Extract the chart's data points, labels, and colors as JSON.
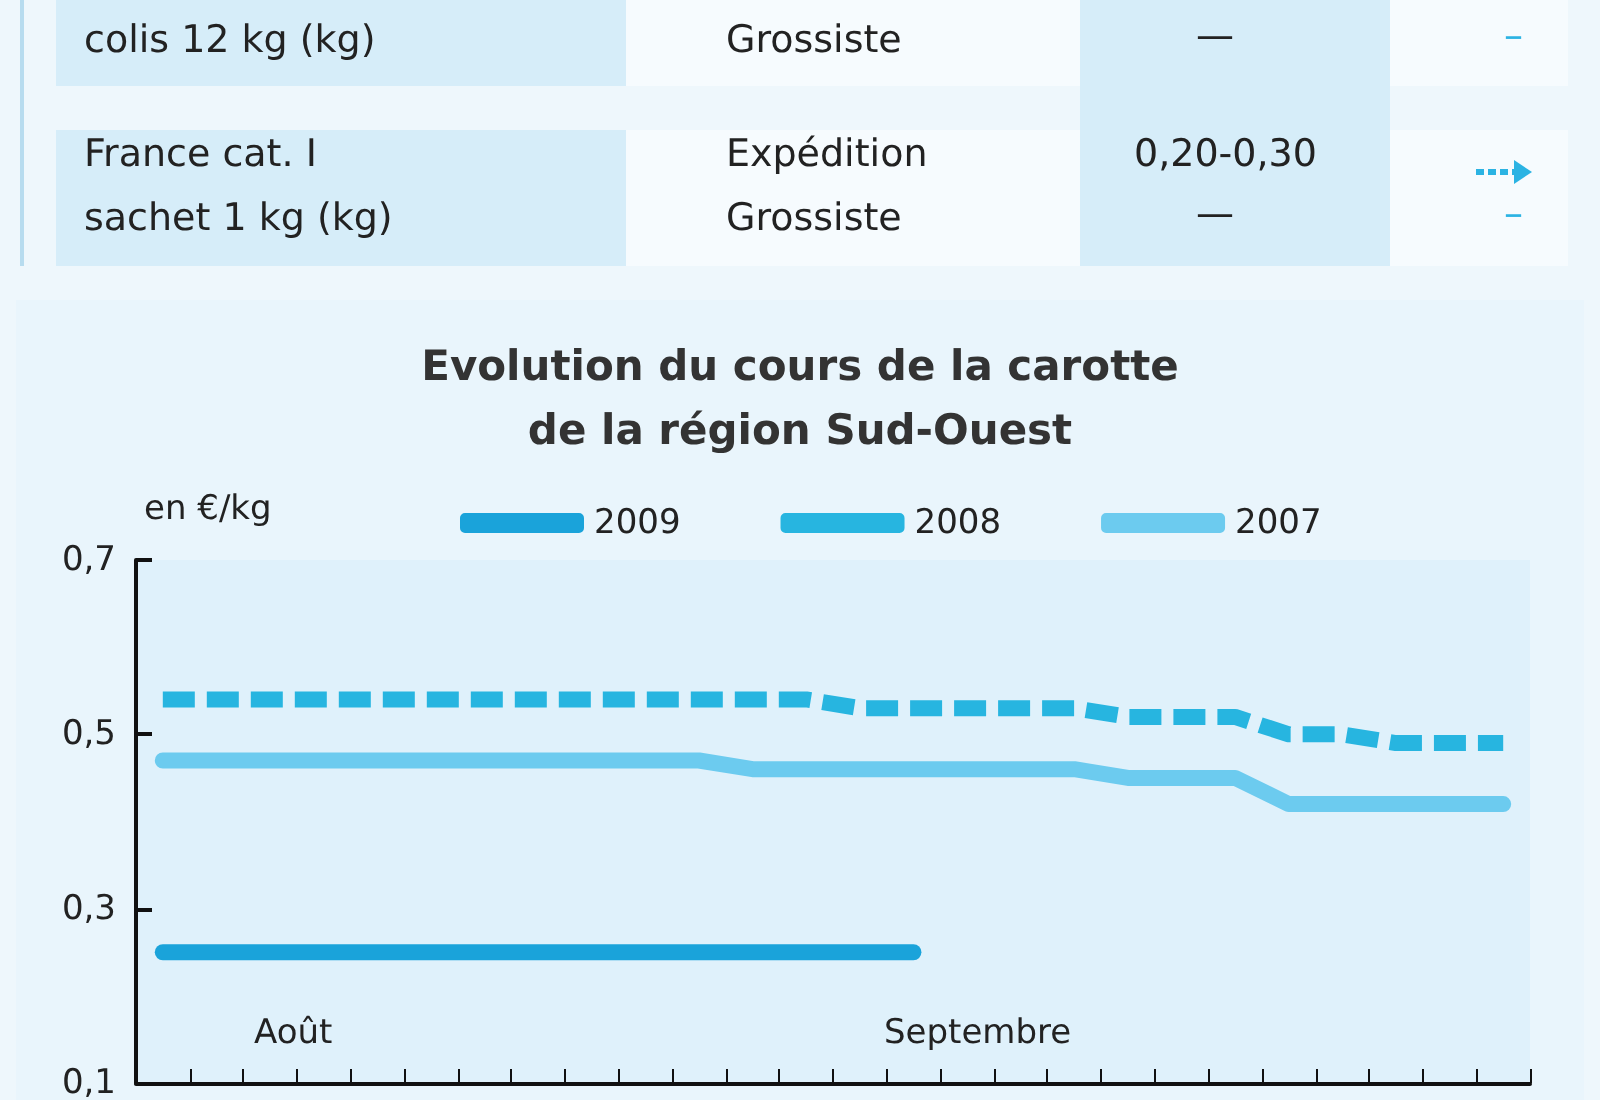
{
  "chart_data": {
    "type": "line",
    "title": "Evolution du cours de la carotte\nde la région Sud-Ouest",
    "ylabel": "en €/kg",
    "annotations": [
      "colis 12 kg (kg)",
      "Grossiste",
      "—",
      "–",
      "France cat. I",
      "sachet 1 kg (kg)",
      "Expédition",
      "Grossiste",
      "0,20-0,30",
      "—",
      "–",
      "Août",
      "Septembre"
    ],
    "categories": [
      null,
      null,
      null,
      null,
      null,
      null,
      null,
      null,
      null,
      null,
      null,
      null,
      null,
      null,
      null,
      null,
      null,
      null,
      null,
      null,
      null,
      null,
      null,
      null,
      null,
      null
    ],
    "series": [
      {
        "name": "2009",
        "color": "#1aa3da",
        "line_style": "solid",
        "values": [
          0.25,
          0.25,
          0.25,
          0.25,
          0.25,
          0.25,
          0.25,
          0.25,
          0.25,
          0.25,
          0.25,
          0.25,
          0.25,
          0.25,
          0.25,
          null,
          null,
          null,
          null,
          null,
          null,
          null,
          null,
          null,
          null,
          null
        ]
      },
      {
        "name": "2008",
        "color": "#27b5e0",
        "line_style": "dashed",
        "values": [
          0.54,
          0.54,
          0.54,
          0.54,
          0.54,
          0.54,
          0.54,
          0.54,
          0.54,
          0.54,
          0.54,
          0.54,
          0.54,
          0.53,
          0.53,
          0.53,
          0.53,
          0.53,
          0.52,
          0.52,
          0.52,
          0.5,
          0.5,
          0.49,
          0.49,
          0.49
        ]
      },
      {
        "name": "2007",
        "color": "#6ccbef",
        "line_style": "solid",
        "values": [
          0.47,
          0.47,
          0.47,
          0.47,
          0.47,
          0.47,
          0.47,
          0.47,
          0.47,
          0.47,
          0.47,
          0.46,
          0.46,
          0.46,
          0.46,
          0.46,
          0.46,
          0.46,
          0.45,
          0.45,
          0.45,
          0.42,
          0.42,
          0.42,
          0.42,
          0.42
        ]
      }
    ],
    "ylim": [
      0.1,
      0.7
    ],
    "yticks": [
      {
        "value": 0.1,
        "label": "0,1"
      },
      {
        "value": 0.3,
        "label": "0,3"
      },
      {
        "value": 0.5,
        "label": "0,5"
      },
      {
        "value": 0.7,
        "label": "0,7"
      }
    ],
    "tick_labels": "y",
    "grid": false,
    "legend": "top"
  }
}
